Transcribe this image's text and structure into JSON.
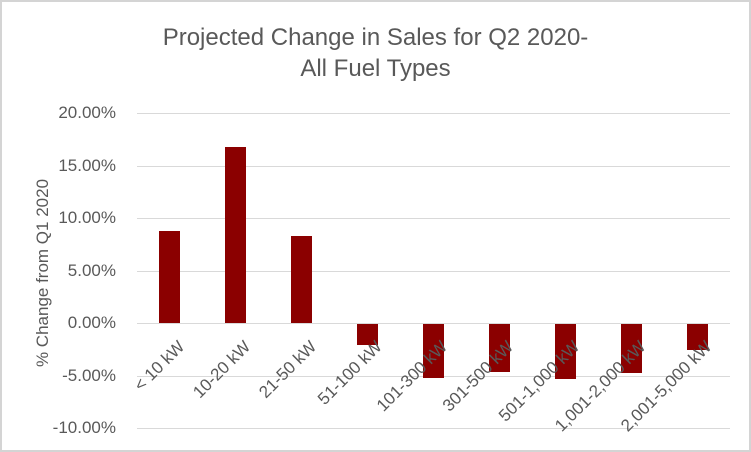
{
  "chart": {
    "title_line1": "Projected Change in Sales for Q2 2020-",
    "title_line2": "All Fuel Types"
  },
  "chart_data": {
    "type": "bar",
    "title": "Projected Change in Sales for Q2 2020- All Fuel Types",
    "xlabel": "",
    "ylabel": "% Change from Q1 2020",
    "categories": [
      "< 10 kW",
      "10-20 kW",
      "21-50 kW",
      "51-100 kW",
      "101-300 kW",
      "301-500 kW",
      "501-1,000 kW",
      "1,001-2,000 kW",
      "2,001-5,000 kW"
    ],
    "values": [
      8.8,
      16.8,
      8.3,
      -2.0,
      -5.1,
      -4.6,
      -5.2,
      -4.7,
      -2.5
    ],
    "ylim": [
      -10,
      20
    ],
    "yticks": [
      20,
      15,
      10,
      5,
      0,
      -5,
      -10
    ],
    "ytick_labels": [
      "20.00%",
      "15.00%",
      "10.00%",
      "5.00%",
      "0.00%",
      "-5.00%",
      "-10.00%"
    ],
    "grid": true,
    "legend": false,
    "colors": {
      "bar": "#8B0000",
      "text": "#595959",
      "gridline": "#D9D9D9",
      "frame_border": "#D4D4D4",
      "background": "#FFFFFF"
    }
  }
}
